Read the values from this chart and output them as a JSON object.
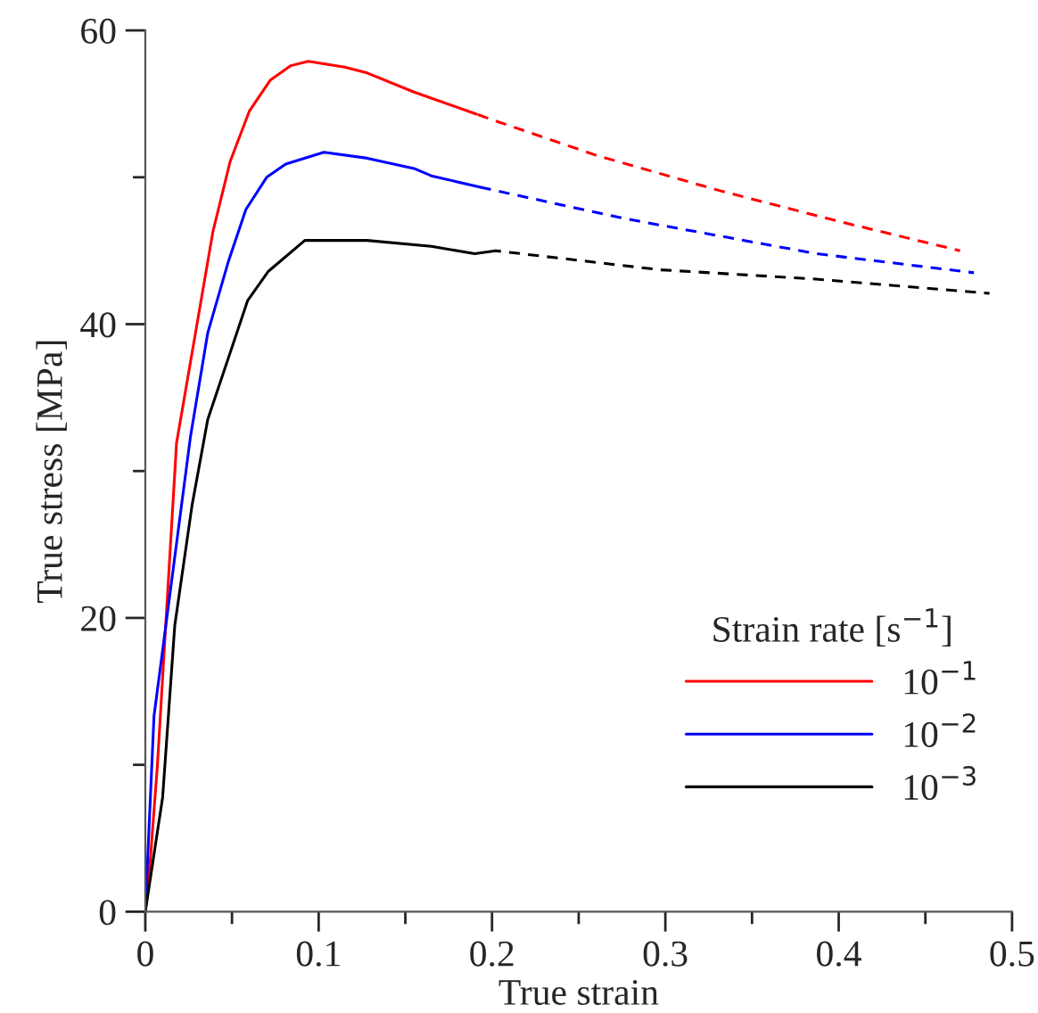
{
  "chart_data": {
    "type": "line",
    "xlabel": "True strain",
    "ylabel": "True stress [MPa]",
    "legend_title": "Strain rate [s$^{−1}$]",
    "xlim": [
      0,
      0.5
    ],
    "ylim": [
      0,
      60
    ],
    "xticks": [
      0,
      {
        "value": 0.05,
        "label": null
      },
      0.1,
      {
        "value": 0.15,
        "label": null
      },
      0.2,
      {
        "value": 0.25,
        "label": null
      },
      0.3,
      {
        "value": 0.35,
        "label": null
      },
      0.4,
      {
        "value": 0.45,
        "label": null
      },
      0.5
    ],
    "yticks": [
      0,
      {
        "value": 10,
        "label": null
      },
      20,
      {
        "value": 30,
        "label": null
      },
      40,
      {
        "value": 50,
        "label": null
      },
      60
    ],
    "grid": false,
    "legend": "bottom right",
    "marker": "none",
    "series": [
      {
        "name": "10$^{−1}$",
        "color": "#ff0000",
        "line_style": "solid",
        "x": [
          0,
          0.003,
          0.007,
          0.018,
          0.039,
          0.049,
          0.06,
          0.072,
          0.084,
          0.094,
          0.115,
          0.128,
          0.155,
          0.191
        ],
        "values": [
          0,
          3.7,
          10,
          31.9,
          46.3,
          51.1,
          54.5,
          56.6,
          57.6,
          57.9,
          57.5,
          57.1,
          55.8,
          54.3
        ]
      },
      {
        "color": "#ff0000",
        "line_style": "dashed",
        "x": [
          0.191,
          0.203,
          0.26,
          0.331,
          0.4,
          0.47
        ],
        "values": [
          54.3,
          53.8,
          51.5,
          49.1,
          47.0,
          45.0
        ]
      },
      {
        "name": "10$^{−2}$",
        "color": "#0000ff",
        "line_style": "solid",
        "x": [
          0,
          0.005,
          0.026,
          0.036,
          0.048,
          0.058,
          0.07,
          0.081,
          0.103,
          0.128,
          0.155,
          0.165,
          0.194
        ],
        "values": [
          0,
          13.3,
          32.3,
          39.4,
          44.3,
          47.8,
          50.0,
          50.9,
          51.7,
          51.3,
          50.6,
          50.1,
          49.3
        ]
      },
      {
        "color": "#0000ff",
        "line_style": "dashed",
        "x": [
          0.194,
          0.276,
          0.387,
          0.478
        ],
        "values": [
          49.3,
          47.2,
          44.8,
          43.5
        ]
      },
      {
        "name": "10$^{−3}$",
        "color": "#000000",
        "line_style": "solid",
        "x": [
          0,
          0.01,
          0.017,
          0.027,
          0.036,
          0.059,
          0.071,
          0.092,
          0.128,
          0.165,
          0.19,
          0.202
        ],
        "values": [
          0,
          7.8,
          19.5,
          27.7,
          33.5,
          41.6,
          43.6,
          45.7,
          45.7,
          45.3,
          44.8,
          45.0
        ]
      },
      {
        "color": "#000000",
        "line_style": "dashed",
        "x": [
          0.202,
          0.297,
          0.383,
          0.487
        ],
        "values": [
          45.0,
          43.7,
          43.1,
          42.1
        ]
      }
    ]
  }
}
